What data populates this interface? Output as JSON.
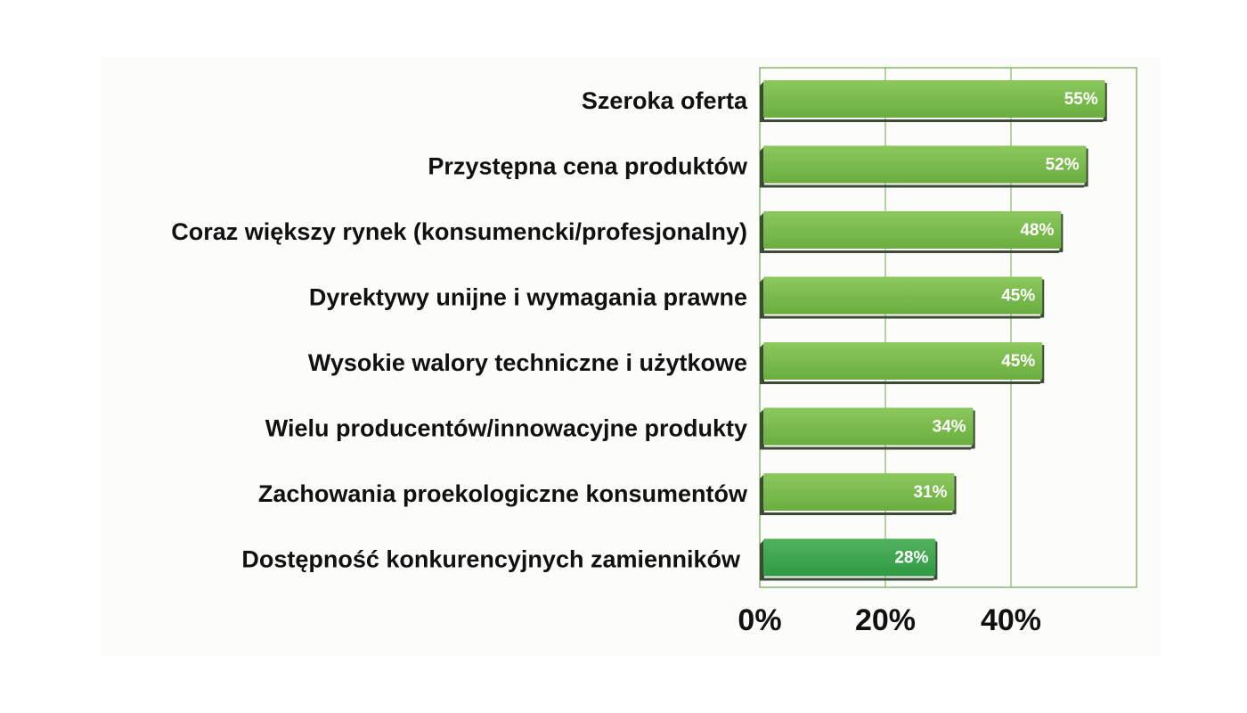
{
  "chart_data": {
    "type": "bar",
    "orientation": "horizontal",
    "categories": [
      "Szeroka oferta",
      "Przystępna cena produktów",
      "Coraz większy rynek (konsumencki/profesjonalny)",
      "Dyrektywy unijne i wymagania prawne",
      "Wysokie walory techniczne i użytkowe",
      "Wielu producentów/innowacyjne produkty",
      "Zachowania proekologiczne konsumentów",
      "Dostępność konkurencyjnych zamienników"
    ],
    "values": [
      55,
      52,
      48,
      45,
      45,
      34,
      31,
      28
    ],
    "value_labels": [
      "55%",
      "52%",
      "48%",
      "45%",
      "45%",
      "34%",
      "31%",
      "28%"
    ],
    "xlim": [
      0,
      60
    ],
    "x_ticks": [
      0,
      20,
      40
    ],
    "x_tick_labels": [
      "0%",
      "20%",
      "40%"
    ],
    "grid": true,
    "legend": "none",
    "colors": {
      "bar": "#7dbb4f",
      "bar_last": "#3fa64f",
      "bar_shadow": "#3c4a36",
      "grid": "#6aa84f"
    }
  }
}
